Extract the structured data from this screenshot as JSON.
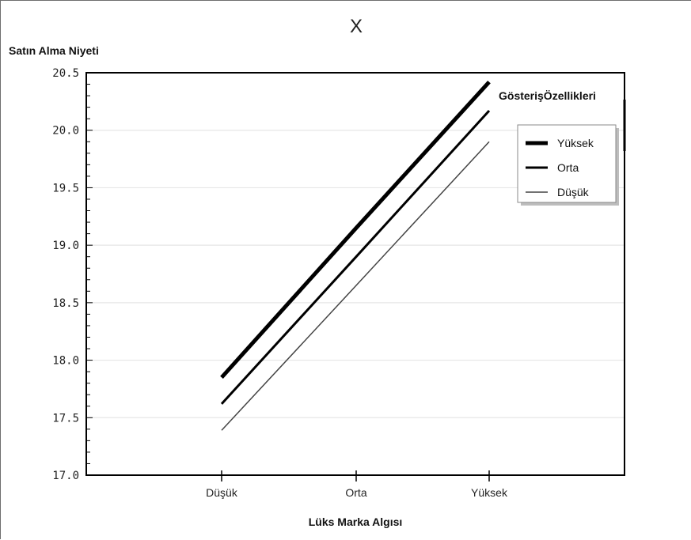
{
  "chart_data": {
    "type": "line",
    "title": "X",
    "ylabel": "Satın Alma Niyeti",
    "xlabel": "Lüks Marka Algısı",
    "categories": [
      "Düşük",
      "Orta",
      "Yüksek"
    ],
    "ylim": [
      17.0,
      20.5
    ],
    "yticks": [
      "20.5",
      "20.0",
      "19.5",
      "19.0",
      "18.5",
      "18.0",
      "17.5",
      "17.0"
    ],
    "ytick_values": [
      20.5,
      20.0,
      19.5,
      19.0,
      18.5,
      18.0,
      17.5,
      17.0
    ],
    "grid": "horizontal",
    "legend_title": "GösterişÖzellikleri",
    "legend_position": "top-right",
    "series": [
      {
        "name": "Yüksek",
        "values": [
          17.85,
          19.15,
          20.42
        ],
        "color": "#000000"
      },
      {
        "name": "Orta",
        "values": [
          17.62,
          18.9,
          20.17
        ],
        "color": "#000000"
      },
      {
        "name": "Düşük",
        "values": [
          17.39,
          18.65,
          19.9
        ],
        "color": "#444444"
      }
    ]
  }
}
